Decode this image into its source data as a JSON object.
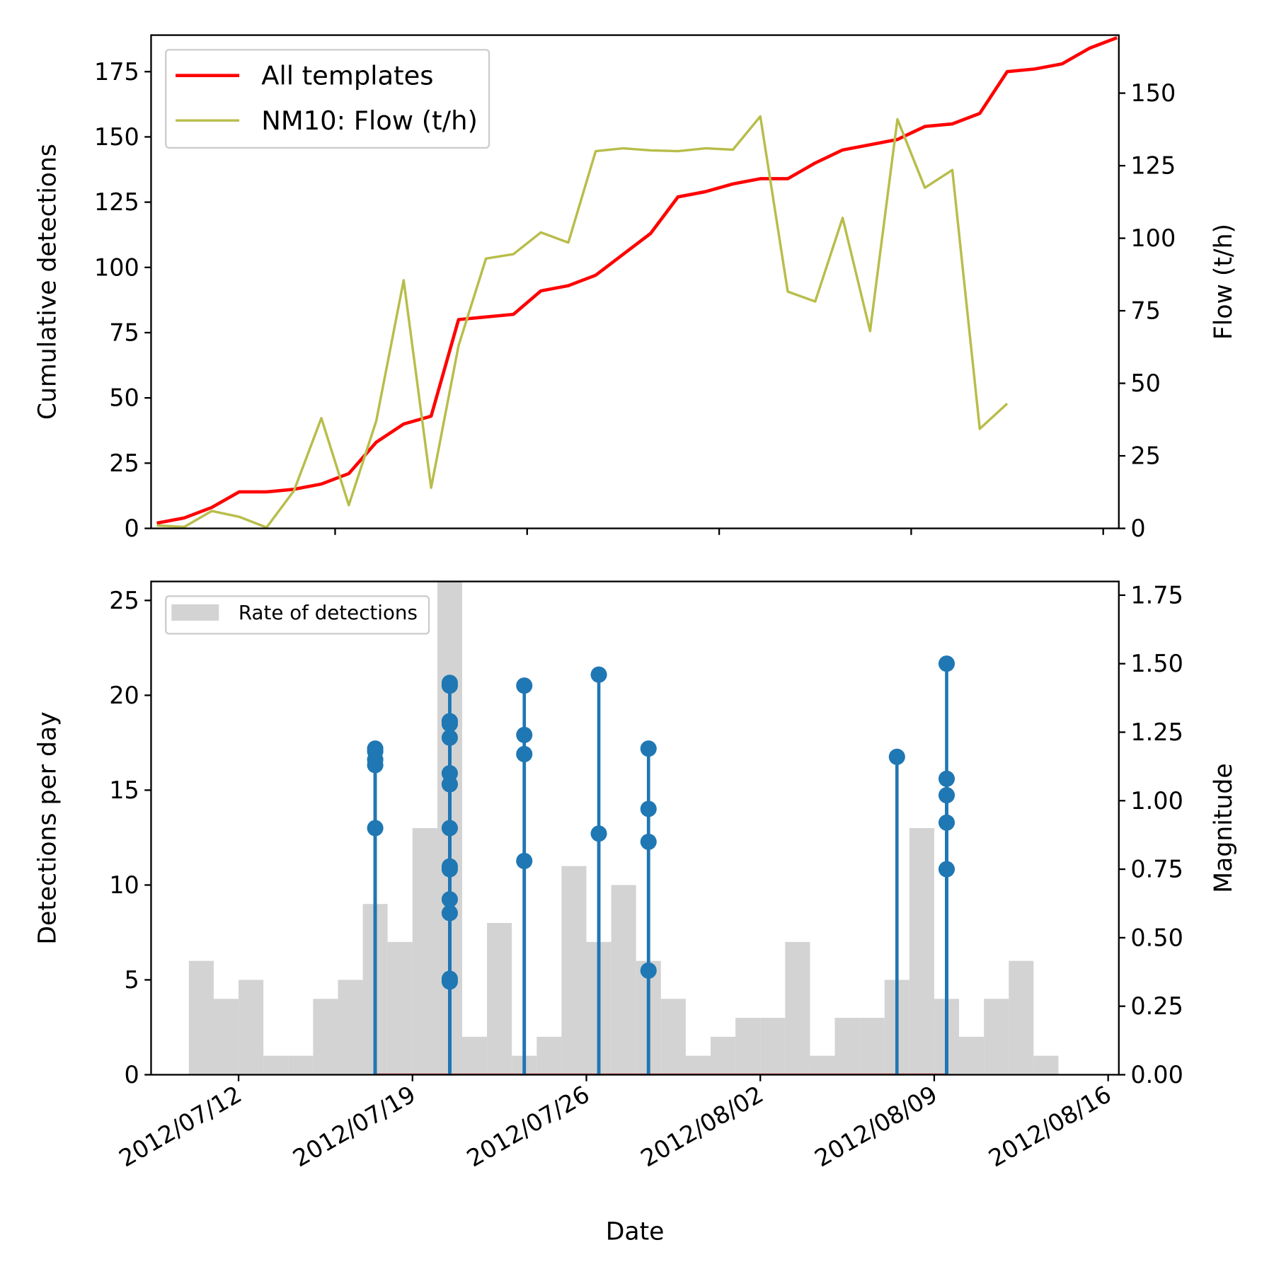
{
  "chart_data": [
    {
      "type": "line",
      "xlim": [
        "2012/07/12 07:00",
        "2012/08/16 13:40"
      ],
      "xticks": [
        "2012/07/19",
        "2012/07/26",
        "2012/08/02",
        "2012/08/09",
        "2012/08/16"
      ],
      "xtick_labels": false,
      "ylabel": "Cumulative detections",
      "y2label": "Flow (t/h)",
      "ylim": [
        0,
        189
      ],
      "yticks": [
        0,
        25,
        50,
        75,
        100,
        125,
        150,
        175
      ],
      "y2lim": [
        0,
        170
      ],
      "y2ticks": [
        0,
        25,
        50,
        75,
        100,
        125,
        150
      ],
      "legend": "upper left",
      "series": [
        {
          "name": "All templates",
          "color": "#ff0000",
          "width": 4,
          "x": [
            "2012/07/12",
            "2012/07/13",
            "2012/07/14",
            "2012/07/15",
            "2012/07/16",
            "2012/07/17",
            "2012/07/18",
            "2012/07/19",
            "2012/07/20",
            "2012/07/21",
            "2012/07/22",
            "2012/07/23",
            "2012/07/24",
            "2012/07/25",
            "2012/07/26",
            "2012/07/27",
            "2012/07/28",
            "2012/07/29",
            "2012/07/30",
            "2012/07/31",
            "2012/08/01",
            "2012/08/02",
            "2012/08/03",
            "2012/08/04",
            "2012/08/05",
            "2012/08/06",
            "2012/08/07",
            "2012/08/08",
            "2012/08/09",
            "2012/08/10",
            "2012/08/11",
            "2012/08/12",
            "2012/08/13",
            "2012/08/14",
            "2012/08/15",
            "2012/08/16"
          ],
          "values": [
            2,
            4,
            8,
            14,
            14,
            15,
            17,
            21,
            33,
            40,
            43,
            80,
            81,
            82,
            91,
            93,
            97,
            105,
            113,
            127,
            129,
            132,
            134,
            134,
            140,
            145,
            147,
            149,
            154,
            155,
            159,
            175,
            176,
            178,
            184,
            188
          ]
        },
        {
          "name": "NM10: Flow (t/h)",
          "color": "#b8bd4a",
          "width": 3,
          "axis": "y2",
          "x": [
            "2012/07/12",
            "2012/07/13",
            "2012/07/14",
            "2012/07/15",
            "2012/07/16",
            "2012/07/17",
            "2012/07/18",
            "2012/07/19",
            "2012/07/20",
            "2012/07/21",
            "2012/07/22",
            "2012/07/23",
            "2012/07/24",
            "2012/07/25",
            "2012/07/26",
            "2012/07/27",
            "2012/07/28",
            "2012/07/29",
            "2012/07/30",
            "2012/07/31",
            "2012/08/01",
            "2012/08/02",
            "2012/08/03",
            "2012/08/04",
            "2012/08/05",
            "2012/08/06",
            "2012/08/07",
            "2012/08/08",
            "2012/08/09",
            "2012/08/10",
            "2012/08/11",
            "2012/08/12"
          ],
          "values": [
            1,
            0.5,
            6,
            4,
            0.3,
            13,
            38,
            8,
            37,
            85.5,
            14,
            63,
            93,
            94.5,
            102,
            98.5,
            130,
            131,
            130.3,
            130,
            131,
            130.5,
            142,
            81.6,
            78.2,
            107,
            68,
            141,
            117.4,
            123.5,
            34.3,
            43
          ]
        }
      ]
    },
    {
      "type": "histogram",
      "xlabel": "Date",
      "xlim": [
        "2012/07/08 11:30",
        "2012/08/16 10:20"
      ],
      "xticks": [
        "2012/07/12",
        "2012/07/19",
        "2012/07/26",
        "2012/08/02",
        "2012/08/09",
        "2012/08/16"
      ],
      "xtick_labels": true,
      "ylabel": "Detections per day",
      "y2label": "Magnitude",
      "ylim": [
        0,
        26
      ],
      "yticks": [
        0,
        5,
        10,
        15,
        20,
        25
      ],
      "y2lim": [
        0,
        1.8
      ],
      "y2ticks": [
        {
          "value": 0,
          "label": "0.00"
        },
        {
          "value": 0.25,
          "label": "0.25"
        },
        {
          "value": 0.5,
          "label": "0.50"
        },
        {
          "value": 0.75,
          "label": "0.75"
        },
        {
          "value": 1,
          "label": "1.00"
        },
        {
          "value": 1.25,
          "label": "1.25"
        },
        {
          "value": 1.5,
          "label": "1.50"
        },
        {
          "value": 1.75,
          "label": "1.75"
        }
      ],
      "legend": "upper left",
      "bins": [
        "2012/07/10",
        "2012/07/11",
        "2012/07/12",
        "2012/07/13",
        "2012/07/14",
        "2012/07/15",
        "2012/07/16",
        "2012/07/17",
        "2012/07/18",
        "2012/07/19",
        "2012/07/20",
        "2012/07/21",
        "2012/07/22",
        "2012/07/23",
        "2012/07/24",
        "2012/07/25",
        "2012/07/26",
        "2012/07/27",
        "2012/07/28",
        "2012/07/29",
        "2012/07/30",
        "2012/07/31",
        "2012/08/01",
        "2012/08/02",
        "2012/08/03",
        "2012/08/04",
        "2012/08/05",
        "2012/08/06",
        "2012/08/07",
        "2012/08/08",
        "2012/08/09",
        "2012/08/10",
        "2012/08/11",
        "2012/08/12",
        "2012/08/13",
        "2012/08/14"
      ],
      "series": [
        {
          "name": "Rate of detections",
          "type": "histogram",
          "color": "#d3d3d3",
          "values": [
            6,
            4,
            5,
            1,
            1,
            4,
            5,
            9,
            7,
            13,
            27,
            2,
            8,
            1,
            2,
            11,
            7,
            10,
            6,
            4,
            1,
            2,
            3,
            3,
            7,
            1,
            3,
            3,
            5,
            13,
            4,
            2,
            4,
            6,
            1
          ]
        },
        {
          "type": "stem",
          "axis": "y2",
          "color": "#1f77b4",
          "baseline_color": "#d62728",
          "x": [
            "2012/07/17",
            "2012/07/17",
            "2012/07/17",
            "2012/07/17",
            "2012/07/17",
            "2012/07/20",
            "2012/07/20",
            "2012/07/20",
            "2012/07/20",
            "2012/07/20",
            "2012/07/20",
            "2012/07/20",
            "2012/07/20",
            "2012/07/20",
            "2012/07/20",
            "2012/07/20",
            "2012/07/20",
            "2012/07/20",
            "2012/07/20",
            "2012/07/20",
            "2012/07/23",
            "2012/07/23",
            "2012/07/23",
            "2012/07/23",
            "2012/07/26",
            "2012/07/26",
            "2012/07/28",
            "2012/07/28",
            "2012/07/28",
            "2012/07/28",
            "2012/08/07",
            "2012/08/09",
            "2012/08/09",
            "2012/08/09",
            "2012/08/09",
            "2012/08/09"
          ],
          "values": [
            1.19,
            1.18,
            1.15,
            1.13,
            0.9,
            1.1,
            1.43,
            0.9,
            0.34,
            0.76,
            1.06,
            1.29,
            1.42,
            0.75,
            1.29,
            1.28,
            1.23,
            0.64,
            0.59,
            0.35,
            1.42,
            1.24,
            1.17,
            0.78,
            1.46,
            0.88,
            1.19,
            0.97,
            0.85,
            0.38,
            1.16,
            0.75,
            1.5,
            1.08,
            1.02,
            0.92
          ]
        }
      ]
    }
  ]
}
